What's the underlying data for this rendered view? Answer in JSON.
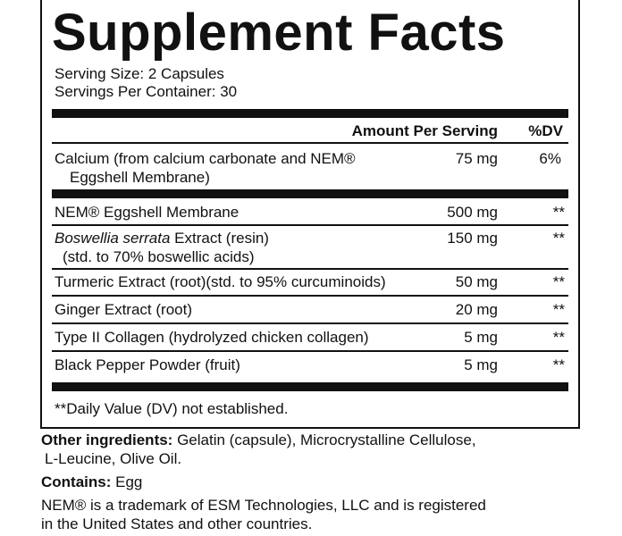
{
  "title": "Supplement Facts",
  "serving_size": "Serving Size: 2 Capsules",
  "servings_per_container": "Servings Per Container: 30",
  "table": {
    "header": [
      "Amount Per Serving",
      "%DV"
    ],
    "rows": [
      {
        "name": "Calcium (from calcium carbonate and NEM®",
        "name_line2": "Eggshell Membrane)",
        "amount": "75 mg",
        "dv": "6%"
      },
      {
        "name": "NEM® Eggshell Membrane",
        "amount": "500 mg",
        "dv": "**"
      },
      {
        "name_italic": "Boswellia serrata",
        "name": " Extract (resin)",
        "name_line2": "(std. to 70% boswellic acids)",
        "amount": "150 mg",
        "dv": "**"
      },
      {
        "name": "Turmeric Extract (root)(std. to 95% curcuminoids)",
        "amount": "50 mg",
        "dv": "**"
      },
      {
        "name": "Ginger Extract (root)",
        "amount": "20 mg",
        "dv": "**"
      },
      {
        "name": "Type II Collagen (hydrolyzed chicken collagen)",
        "amount": "5 mg",
        "dv": "**"
      },
      {
        "name": "Black Pepper Powder (fruit)",
        "amount": "5 mg",
        "dv": "**"
      }
    ]
  },
  "footnote": "**Daily Value (DV) not established.",
  "other_ingredients": {
    "label": "Other ingredients:",
    "text": " Gelatin (capsule), Microcrystalline Cellulose,",
    "text_line2": "L-Leucine, Olive Oil."
  },
  "contains": {
    "label": "Contains:",
    "text": " Egg"
  },
  "trademark": {
    "line1": "NEM® is a trademark of ESM Technologies, LLC and is registered",
    "line2": "in the United States and other countries."
  }
}
